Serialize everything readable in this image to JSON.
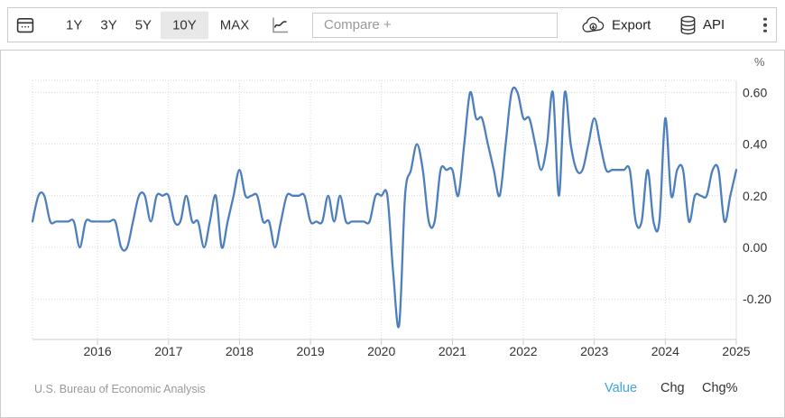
{
  "toolbar": {
    "ranges": [
      {
        "label": "1Y",
        "selected": false
      },
      {
        "label": "3Y",
        "selected": false
      },
      {
        "label": "5Y",
        "selected": false
      },
      {
        "label": "10Y",
        "selected": true
      },
      {
        "label": "MAX",
        "selected": false
      }
    ],
    "compare_placeholder": "Compare +",
    "export_label": "Export",
    "api_label": "API"
  },
  "chart": {
    "unit_label": "%"
  },
  "footer": {
    "source": "U.S. Bureau of Economic Analysis",
    "links": [
      {
        "label": "Value",
        "active": true
      },
      {
        "label": "Chg",
        "active": false
      },
      {
        "label": "Chg%",
        "active": false
      }
    ]
  },
  "colors": {
    "line": "#4d7ebd",
    "link_blue": "#40a3e3",
    "selected_bg": "#e8e8e8",
    "border": "#cccccc",
    "grid": "#d9d9d9",
    "axis_line": "#cccccc",
    "axis_text": "#333333",
    "muted_text": "#999999"
  },
  "chart_data": {
    "type": "line",
    "title": "",
    "unit": "%",
    "frequency": "monthly",
    "x_start": "2015-02",
    "x_end": "2025-01",
    "values": [
      0.1,
      0.2,
      0.2,
      0.1,
      0.1,
      0.1,
      0.1,
      0.1,
      0.0,
      0.1,
      0.1,
      0.1,
      0.1,
      0.1,
      0.1,
      0.0,
      0.0,
      0.1,
      0.2,
      0.2,
      0.1,
      0.2,
      0.2,
      0.2,
      0.1,
      0.1,
      0.2,
      0.1,
      0.1,
      0.0,
      0.1,
      0.2,
      0.0,
      0.1,
      0.2,
      0.3,
      0.2,
      0.2,
      0.2,
      0.1,
      0.1,
      0.0,
      0.1,
      0.2,
      0.2,
      0.2,
      0.2,
      0.1,
      0.1,
      0.1,
      0.2,
      0.1,
      0.2,
      0.1,
      0.1,
      0.1,
      0.1,
      0.1,
      0.2,
      0.2,
      0.2,
      -0.1,
      -0.3,
      0.2,
      0.3,
      0.4,
      0.3,
      0.1,
      0.1,
      0.3,
      0.3,
      0.3,
      0.2,
      0.4,
      0.6,
      0.5,
      0.5,
      0.4,
      0.3,
      0.2,
      0.4,
      0.6,
      0.6,
      0.5,
      0.5,
      0.4,
      0.3,
      0.4,
      0.6,
      0.2,
      0.6,
      0.4,
      0.3,
      0.3,
      0.4,
      0.5,
      0.4,
      0.3,
      0.3,
      0.3,
      0.3,
      0.3,
      0.1,
      0.1,
      0.3,
      0.1,
      0.1,
      0.5,
      0.2,
      0.3,
      0.3,
      0.1,
      0.2,
      0.2,
      0.2,
      0.3,
      0.3,
      0.1,
      0.2,
      0.3
    ],
    "ytick_labels": [
      "0.60",
      "0.40",
      "0.20",
      "0.00",
      "-0.20"
    ],
    "ytick_values": [
      0.6,
      0.4,
      0.2,
      0.0,
      -0.2
    ],
    "xtick_labels": [
      "2016",
      "2017",
      "2018",
      "2019",
      "2020",
      "2021",
      "2022",
      "2023",
      "2024",
      "2025"
    ],
    "ylim": [
      -0.36,
      0.65
    ],
    "ylabel": "%",
    "grid": "dotted",
    "legend": "none",
    "line_color": "#4d7ebd"
  }
}
